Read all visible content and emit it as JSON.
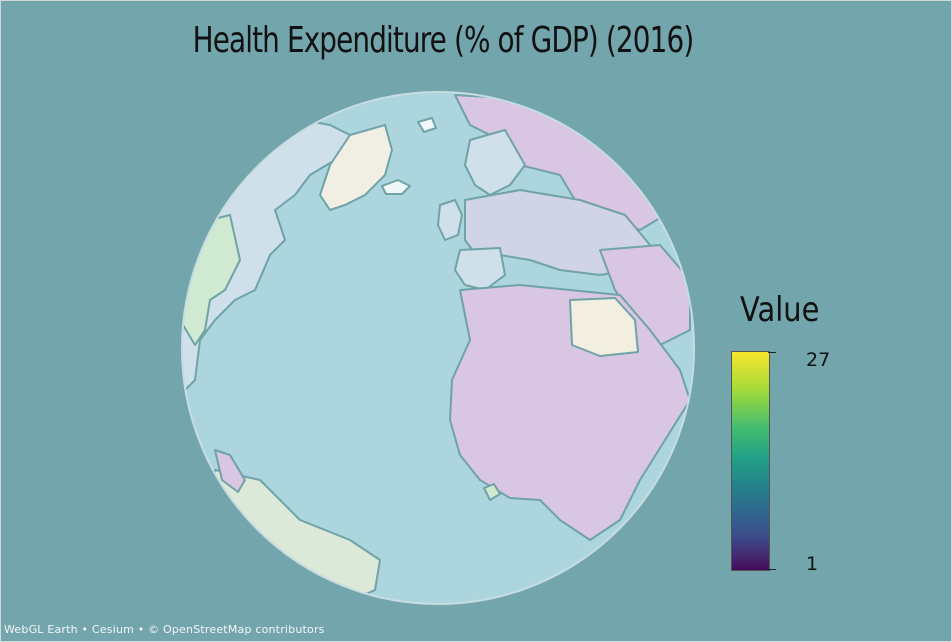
{
  "title": "Health Expenditure (% of GDP) (2016)",
  "legend": {
    "title": "Value",
    "max_label": "27",
    "min_label": "1",
    "colorscale": [
      "#44095a",
      "#3a4e8a",
      "#23858b",
      "#22a286",
      "#47be6d",
      "#9fd93b",
      "#f7e62a"
    ]
  },
  "attribution": "WebGL Earth • Cesium • © OpenStreetMap contributors",
  "colors": {
    "background": "#73a5ad",
    "ocean": "#acd5de",
    "country_low": "#d8c6e2",
    "country_mid": "#cfe0ea",
    "country_high": "#cfead1"
  }
}
